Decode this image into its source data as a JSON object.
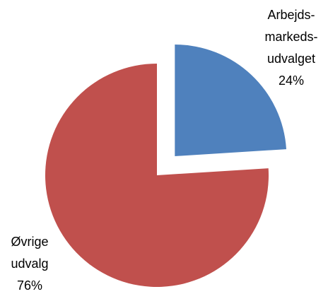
{
  "chart_data": {
    "type": "pie",
    "categories": [
      [
        "Arbejds-",
        "markeds-",
        "udvalget"
      ],
      [
        "Øvrige",
        "udvalg"
      ]
    ],
    "values": [
      24,
      76
    ],
    "value_labels": [
      "24%",
      "76%"
    ],
    "colors": [
      "#4f81bd",
      "#c0504d"
    ],
    "exploded": [
      true,
      false
    ]
  }
}
